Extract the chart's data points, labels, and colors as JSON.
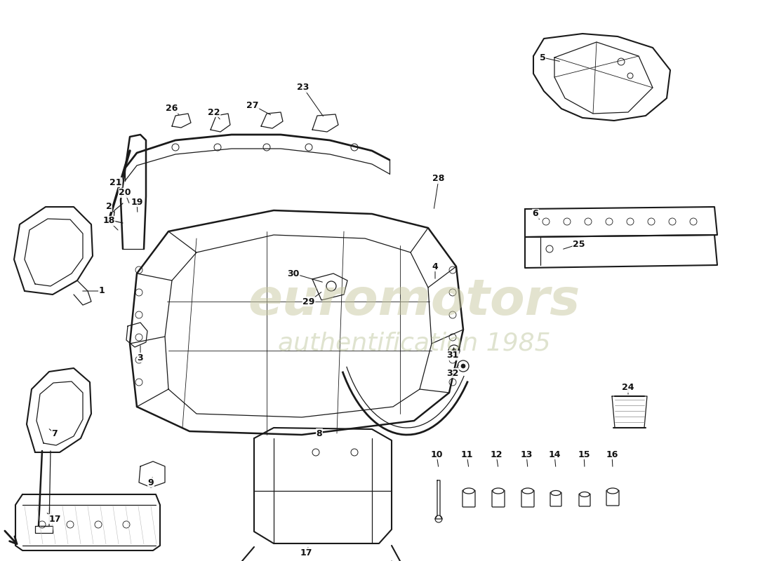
{
  "bg_color": "#ffffff",
  "line_color": "#1a1a1a",
  "wm_color1": "#c8c8a0",
  "wm_color2": "#c0c8a0",
  "label_color": "#111111",
  "lw_main": 1.5,
  "lw_thin": 0.9,
  "lw_xtra": 0.6,
  "fig_w": 11.0,
  "fig_h": 8.0,
  "dpi": 100
}
